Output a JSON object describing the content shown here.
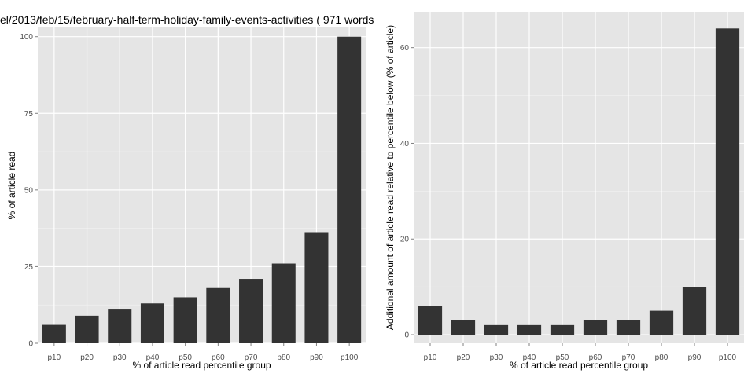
{
  "page_title": "el/2013/feb/15/february-half-term-holiday-family-events-activities ( 971 words",
  "colors": {
    "panel_bg": "#e5e5e5",
    "grid": "#ffffff",
    "bar": "#333333",
    "tick_text": "#4d4d4d"
  },
  "chart_data": [
    {
      "type": "bar",
      "categories": [
        "p10",
        "p20",
        "p30",
        "p40",
        "p50",
        "p60",
        "p70",
        "p80",
        "p90",
        "p100"
      ],
      "values": [
        6,
        9,
        11,
        13,
        15,
        18,
        21,
        26,
        36,
        100
      ],
      "xlabel": "% of article read percentile group",
      "ylabel": "% of article read",
      "ylim": [
        0,
        103
      ],
      "yticks": [
        0,
        25,
        50,
        75,
        100
      ],
      "grid": true
    },
    {
      "type": "bar",
      "categories": [
        "p10",
        "p20",
        "p30",
        "p40",
        "p50",
        "p60",
        "p70",
        "p80",
        "p90",
        "p100"
      ],
      "values": [
        6,
        3,
        2,
        2,
        2,
        3,
        3,
        5,
        10,
        64
      ],
      "xlabel": "% of article read percentile group",
      "ylabel": "Additional amount of article read relative to percentile below (% of article)",
      "ylim": [
        -1.8,
        67.5
      ],
      "yticks": [
        0,
        20,
        40,
        60
      ],
      "grid": true
    }
  ]
}
